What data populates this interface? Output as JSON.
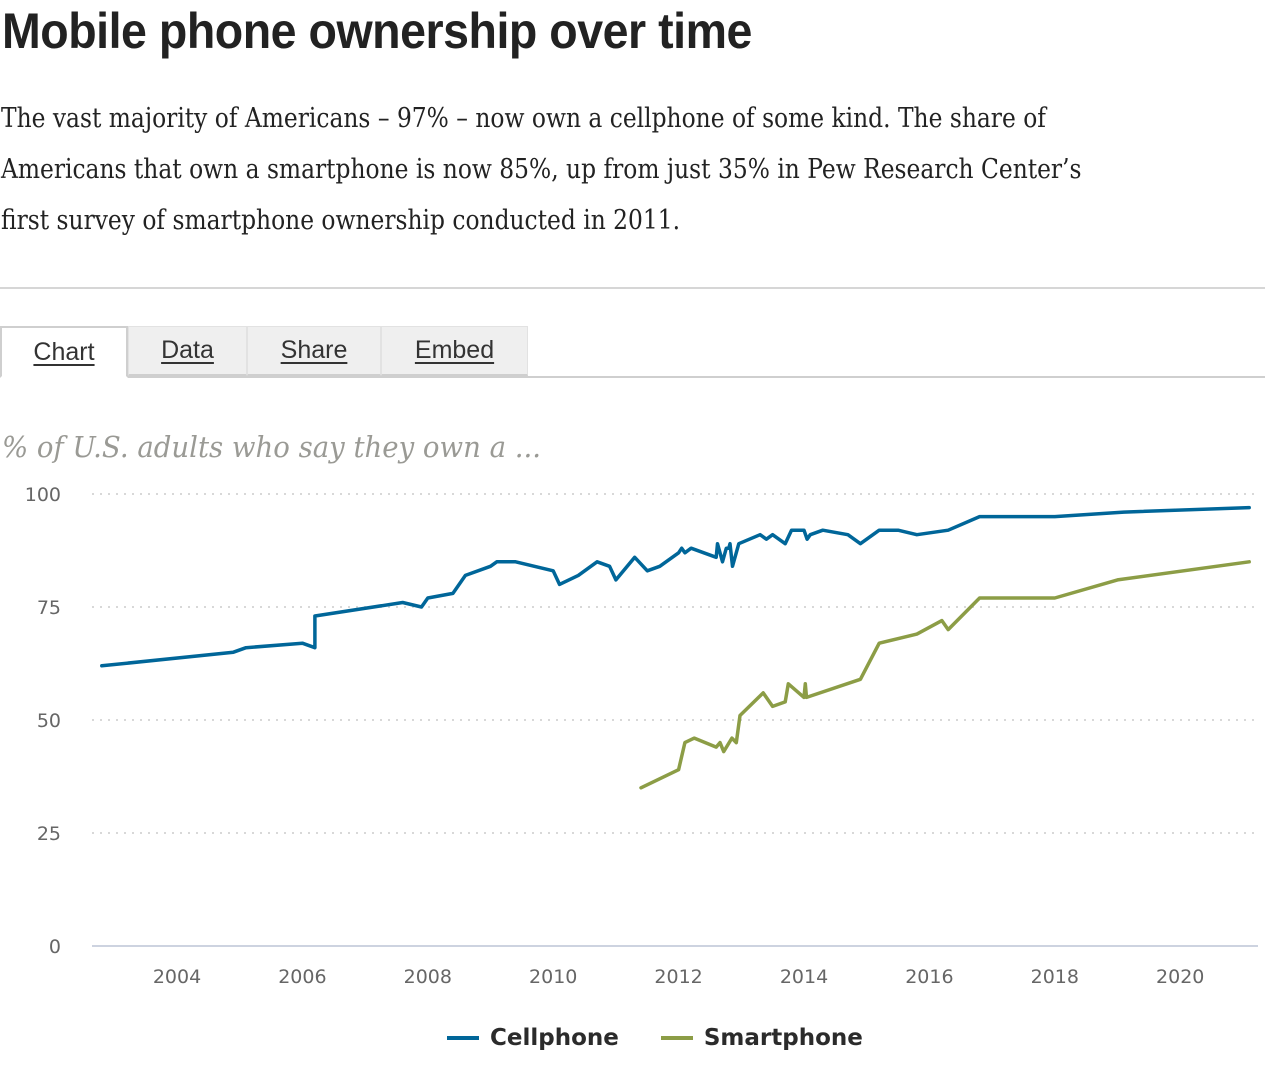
{
  "header": {
    "title": "Mobile phone ownership over time",
    "description": "The vast majority of Americans – 97% – now own a cellphone of some kind. The share of Americans that own a smartphone is now 85%, up from just 35% in Pew Research Center’s first survey of smartphone ownership conducted in 2011."
  },
  "tabs": [
    {
      "label": "Chart",
      "active": true
    },
    {
      "label": "Data",
      "active": false
    },
    {
      "label": "Share",
      "active": false
    },
    {
      "label": "Embed",
      "active": false
    }
  ],
  "chart_data": {
    "type": "line",
    "title": "Mobile phone ownership over time",
    "subtitle": "% of U.S. adults who say they own a ...",
    "xlabel": "",
    "ylabel": "",
    "xlim": [
      2002.6,
      2021.3
    ],
    "ylim": [
      0,
      100
    ],
    "yticks": [
      0,
      25,
      50,
      75,
      100
    ],
    "ytick_labels": [
      "0",
      "25",
      "50",
      "75",
      "100"
    ],
    "xticks": [
      2004,
      2006,
      2008,
      2010,
      2012,
      2014,
      2016,
      2018,
      2020
    ],
    "xtick_labels": [
      "2004",
      "2006",
      "2008",
      "2010",
      "2012",
      "2014",
      "2016",
      "2018",
      "2020"
    ],
    "grid": "horizontal-dotted",
    "legend_position": "bottom-center",
    "series": [
      {
        "name": "Cellphone",
        "color": "#006699",
        "points": [
          [
            2002.8,
            62
          ],
          [
            2004.9,
            65
          ],
          [
            2005.1,
            66
          ],
          [
            2006.0,
            67
          ],
          [
            2006.2,
            66
          ],
          [
            2006.2,
            73
          ],
          [
            2007.6,
            76
          ],
          [
            2007.9,
            75
          ],
          [
            2008.0,
            77
          ],
          [
            2008.4,
            78
          ],
          [
            2008.6,
            82
          ],
          [
            2009.0,
            84
          ],
          [
            2009.1,
            85
          ],
          [
            2009.4,
            85
          ],
          [
            2010.0,
            83
          ],
          [
            2010.1,
            80
          ],
          [
            2010.4,
            82
          ],
          [
            2010.7,
            85
          ],
          [
            2010.9,
            84
          ],
          [
            2011.0,
            81
          ],
          [
            2011.3,
            86
          ],
          [
            2011.5,
            83
          ],
          [
            2011.7,
            84
          ],
          [
            2012.0,
            87
          ],
          [
            2012.05,
            88
          ],
          [
            2012.1,
            87
          ],
          [
            2012.2,
            88
          ],
          [
            2012.6,
            86
          ],
          [
            2012.62,
            89
          ],
          [
            2012.7,
            85
          ],
          [
            2012.76,
            88
          ],
          [
            2012.8,
            88
          ],
          [
            2012.82,
            89
          ],
          [
            2012.86,
            84
          ],
          [
            2012.96,
            89
          ],
          [
            2013.3,
            91
          ],
          [
            2013.4,
            90
          ],
          [
            2013.5,
            91
          ],
          [
            2013.7,
            89
          ],
          [
            2013.8,
            92
          ],
          [
            2014.0,
            92
          ],
          [
            2014.05,
            90
          ],
          [
            2014.1,
            91
          ],
          [
            2014.3,
            92
          ],
          [
            2014.7,
            91
          ],
          [
            2014.9,
            89
          ],
          [
            2015.2,
            92
          ],
          [
            2015.5,
            92
          ],
          [
            2015.8,
            91
          ],
          [
            2016.3,
            92
          ],
          [
            2016.8,
            95
          ],
          [
            2018.0,
            95
          ],
          [
            2019.1,
            96
          ],
          [
            2021.1,
            97
          ]
        ]
      },
      {
        "name": "Smartphone",
        "color": "#8c9d46",
        "points": [
          [
            2011.4,
            35
          ],
          [
            2012.0,
            39
          ],
          [
            2012.1,
            45
          ],
          [
            2012.25,
            46
          ],
          [
            2012.6,
            44
          ],
          [
            2012.66,
            45
          ],
          [
            2012.72,
            43
          ],
          [
            2012.85,
            46
          ],
          [
            2012.92,
            45
          ],
          [
            2012.98,
            51
          ],
          [
            2013.35,
            56
          ],
          [
            2013.5,
            53
          ],
          [
            2013.7,
            54
          ],
          [
            2013.75,
            58
          ],
          [
            2014.0,
            55
          ],
          [
            2014.02,
            58
          ],
          [
            2014.04,
            55
          ],
          [
            2014.9,
            59
          ],
          [
            2015.2,
            67
          ],
          [
            2015.8,
            69
          ],
          [
            2016.2,
            72
          ],
          [
            2016.3,
            70
          ],
          [
            2016.8,
            77
          ],
          [
            2018.0,
            77
          ],
          [
            2019.0,
            81
          ],
          [
            2021.1,
            85
          ]
        ]
      }
    ]
  }
}
